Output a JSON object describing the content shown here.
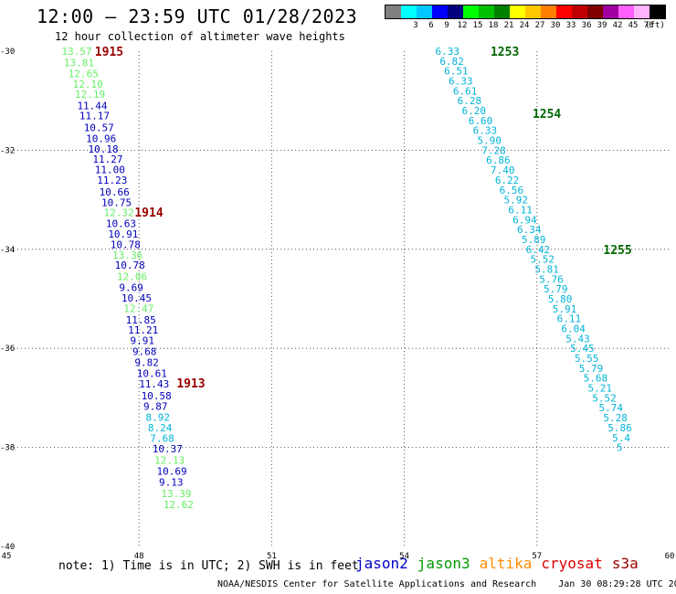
{
  "header": {
    "title": "12:00 — 23:59 UTC 01/28/2023",
    "subtitle": "12 hour collection of altimeter wave heights"
  },
  "legend": {
    "unit": "(ft)",
    "bins": [
      {
        "color": "#808080",
        "label": ""
      },
      {
        "color": "#00ffff",
        "label": "3"
      },
      {
        "color": "#00c8ff",
        "label": "6"
      },
      {
        "color": "#0000ff",
        "label": "9"
      },
      {
        "color": "#000080",
        "label": "12"
      },
      {
        "color": "#00ff00",
        "label": "15"
      },
      {
        "color": "#00c000",
        "label": "18"
      },
      {
        "color": "#008000",
        "label": "21"
      },
      {
        "color": "#ffff00",
        "label": "24"
      },
      {
        "color": "#ffc800",
        "label": "27"
      },
      {
        "color": "#ff8000",
        "label": "30"
      },
      {
        "color": "#ff0000",
        "label": "33"
      },
      {
        "color": "#c00000",
        "label": "36"
      },
      {
        "color": "#800000",
        "label": "39"
      },
      {
        "color": "#a000a0",
        "label": "42"
      },
      {
        "color": "#ff60ff",
        "label": "45"
      },
      {
        "color": "#ffb4ff",
        "label": "70"
      },
      {
        "color": "#000000",
        "label": ""
      }
    ]
  },
  "map": {
    "lon_range": [
      45,
      60
    ],
    "lat_range": [
      -40,
      -30
    ],
    "x_ticks": [
      "45",
      "48",
      "51",
      "54",
      "57",
      "60"
    ],
    "y_ticks": [
      "-30",
      "-32",
      "-34",
      "-36",
      "-38",
      "-40"
    ],
    "pass_colors": {
      "light_green": "#66ee66",
      "dark_blue": "#0000bb",
      "cyan": "#00b4d8",
      "maroon": "#990000",
      "dark_green": "#006600"
    },
    "passes": [
      {
        "id": "1915",
        "lat": -30.0,
        "lon": 47.0,
        "color": "maroon"
      },
      {
        "id": "1914",
        "lat": -33.25,
        "lon": 47.9,
        "color": "maroon"
      },
      {
        "id": "1913",
        "lat": -36.7,
        "lon": 48.85,
        "color": "maroon"
      },
      {
        "id": "1253",
        "lat": -30.0,
        "lon": 55.95,
        "color": "dark_green"
      },
      {
        "id": "1254",
        "lat": -31.25,
        "lon": 56.9,
        "color": "dark_green"
      },
      {
        "id": "1255",
        "lat": -34.0,
        "lon": 58.5,
        "color": "dark_green"
      }
    ],
    "track_points": [
      {
        "lat": -30.0,
        "lon": 46.25,
        "v": "13.57",
        "color": "light_green"
      },
      {
        "lat": -30.23,
        "lon": 46.3,
        "v": "13.81",
        "color": "light_green"
      },
      {
        "lat": -30.45,
        "lon": 46.4,
        "v": "12.65",
        "color": "light_green"
      },
      {
        "lat": -30.66,
        "lon": 46.5,
        "v": "12.10",
        "color": "light_green"
      },
      {
        "lat": -30.87,
        "lon": 46.55,
        "v": "12.19",
        "color": "light_green"
      },
      {
        "lat": -31.1,
        "lon": 46.6,
        "v": "11.44",
        "color": "dark_blue"
      },
      {
        "lat": -31.3,
        "lon": 46.65,
        "v": "11.17",
        "color": "dark_blue"
      },
      {
        "lat": -31.54,
        "lon": 46.75,
        "v": "10.57",
        "color": "dark_blue"
      },
      {
        "lat": -31.76,
        "lon": 46.8,
        "v": "10.96",
        "color": "dark_blue"
      },
      {
        "lat": -31.97,
        "lon": 46.85,
        "v": "10.18",
        "color": "dark_blue"
      },
      {
        "lat": -32.18,
        "lon": 46.95,
        "v": "11.27",
        "color": "dark_blue"
      },
      {
        "lat": -32.39,
        "lon": 47.0,
        "v": "11.00",
        "color": "dark_blue"
      },
      {
        "lat": -32.6,
        "lon": 47.05,
        "v": "11.23",
        "color": "dark_blue"
      },
      {
        "lat": -32.84,
        "lon": 47.1,
        "v": "10.66",
        "color": "dark_blue"
      },
      {
        "lat": -33.05,
        "lon": 47.15,
        "v": "10.75",
        "color": "dark_blue"
      },
      {
        "lat": -33.26,
        "lon": 47.2,
        "v": "12.32",
        "color": "light_green"
      },
      {
        "lat": -33.48,
        "lon": 47.25,
        "v": "10.63",
        "color": "dark_blue"
      },
      {
        "lat": -33.69,
        "lon": 47.3,
        "v": "10.91",
        "color": "dark_blue"
      },
      {
        "lat": -33.9,
        "lon": 47.35,
        "v": "10.78",
        "color": "dark_blue"
      },
      {
        "lat": -34.11,
        "lon": 47.4,
        "v": "13.36",
        "color": "light_green"
      },
      {
        "lat": -34.32,
        "lon": 47.45,
        "v": "10.78",
        "color": "dark_blue"
      },
      {
        "lat": -34.55,
        "lon": 47.5,
        "v": "12.06",
        "color": "light_green"
      },
      {
        "lat": -34.77,
        "lon": 47.55,
        "v": "9.69",
        "color": "dark_blue"
      },
      {
        "lat": -34.98,
        "lon": 47.6,
        "v": "10.45",
        "color": "dark_blue"
      },
      {
        "lat": -35.19,
        "lon": 47.65,
        "v": "12.47",
        "color": "light_green"
      },
      {
        "lat": -35.42,
        "lon": 47.7,
        "v": "11.85",
        "color": "dark_blue"
      },
      {
        "lat": -35.63,
        "lon": 47.75,
        "v": "11.21",
        "color": "dark_blue"
      },
      {
        "lat": -35.84,
        "lon": 47.8,
        "v": "9.91",
        "color": "dark_blue"
      },
      {
        "lat": -36.06,
        "lon": 47.85,
        "v": "9.68",
        "color": "dark_blue"
      },
      {
        "lat": -36.28,
        "lon": 47.9,
        "v": "9.82",
        "color": "dark_blue"
      },
      {
        "lat": -36.5,
        "lon": 47.95,
        "v": "10.61",
        "color": "dark_blue"
      },
      {
        "lat": -36.72,
        "lon": 48.0,
        "v": "11.43",
        "color": "dark_blue"
      },
      {
        "lat": -36.96,
        "lon": 48.05,
        "v": "10.58",
        "color": "dark_blue"
      },
      {
        "lat": -37.17,
        "lon": 48.1,
        "v": "9.87",
        "color": "dark_blue"
      },
      {
        "lat": -37.39,
        "lon": 48.15,
        "v": "8.92",
        "color": "cyan"
      },
      {
        "lat": -37.6,
        "lon": 48.2,
        "v": "8.24",
        "color": "cyan"
      },
      {
        "lat": -37.81,
        "lon": 48.25,
        "v": "7.68",
        "color": "cyan"
      },
      {
        "lat": -38.03,
        "lon": 48.3,
        "v": "10.37",
        "color": "dark_blue"
      },
      {
        "lat": -38.26,
        "lon": 48.35,
        "v": "12.13",
        "color": "light_green"
      },
      {
        "lat": -38.48,
        "lon": 48.4,
        "v": "10.69",
        "color": "dark_blue"
      },
      {
        "lat": -38.7,
        "lon": 48.45,
        "v": "9.13",
        "color": "dark_blue"
      },
      {
        "lat": -38.93,
        "lon": 48.5,
        "v": "13.39",
        "color": "light_green"
      },
      {
        "lat": -39.15,
        "lon": 48.55,
        "v": "12.62",
        "color": "light_green"
      },
      {
        "lat": -30.0,
        "lon": 54.7,
        "v": "6.33",
        "color": "cyan"
      },
      {
        "lat": -30.2,
        "lon": 54.8,
        "v": "6.82",
        "color": "cyan"
      },
      {
        "lat": -30.4,
        "lon": 54.9,
        "v": "6.51",
        "color": "cyan"
      },
      {
        "lat": -30.6,
        "lon": 55.0,
        "v": "6.33",
        "color": "cyan"
      },
      {
        "lat": -30.8,
        "lon": 55.1,
        "v": "6.61",
        "color": "cyan"
      },
      {
        "lat": -31.0,
        "lon": 55.2,
        "v": "6.28",
        "color": "cyan"
      },
      {
        "lat": -31.2,
        "lon": 55.3,
        "v": "6.20",
        "color": "cyan"
      },
      {
        "lat": -31.4,
        "lon": 55.45,
        "v": "6.60",
        "color": "cyan"
      },
      {
        "lat": -31.6,
        "lon": 55.55,
        "v": "6.33",
        "color": "cyan"
      },
      {
        "lat": -31.8,
        "lon": 55.65,
        "v": "5.90",
        "color": "cyan"
      },
      {
        "lat": -32.0,
        "lon": 55.75,
        "v": "7.28",
        "color": "cyan"
      },
      {
        "lat": -32.2,
        "lon": 55.85,
        "v": "6.86",
        "color": "cyan"
      },
      {
        "lat": -32.4,
        "lon": 55.95,
        "v": "7.40",
        "color": "cyan"
      },
      {
        "lat": -32.6,
        "lon": 56.05,
        "v": "6.22",
        "color": "cyan"
      },
      {
        "lat": -32.8,
        "lon": 56.15,
        "v": "6.56",
        "color": "cyan"
      },
      {
        "lat": -33.0,
        "lon": 56.25,
        "v": "5.92",
        "color": "cyan"
      },
      {
        "lat": -33.2,
        "lon": 56.35,
        "v": "6.11",
        "color": "cyan"
      },
      {
        "lat": -33.4,
        "lon": 56.45,
        "v": "6.94",
        "color": "cyan"
      },
      {
        "lat": -33.6,
        "lon": 56.55,
        "v": "6.34",
        "color": "cyan"
      },
      {
        "lat": -33.8,
        "lon": 56.65,
        "v": "5.89",
        "color": "cyan"
      },
      {
        "lat": -34.0,
        "lon": 56.75,
        "v": "6.42",
        "color": "cyan"
      },
      {
        "lat": -34.2,
        "lon": 56.85,
        "v": "5.52",
        "color": "cyan"
      },
      {
        "lat": -34.4,
        "lon": 56.95,
        "v": "5.81",
        "color": "cyan"
      },
      {
        "lat": -34.6,
        "lon": 57.05,
        "v": "5.76",
        "color": "cyan"
      },
      {
        "lat": -34.8,
        "lon": 57.15,
        "v": "5.79",
        "color": "cyan"
      },
      {
        "lat": -35.0,
        "lon": 57.25,
        "v": "5.80",
        "color": "cyan"
      },
      {
        "lat": -35.2,
        "lon": 57.35,
        "v": "5.91",
        "color": "cyan"
      },
      {
        "lat": -35.4,
        "lon": 57.45,
        "v": "6.11",
        "color": "cyan"
      },
      {
        "lat": -35.6,
        "lon": 57.55,
        "v": "6.04",
        "color": "cyan"
      },
      {
        "lat": -35.8,
        "lon": 57.65,
        "v": "5.43",
        "color": "cyan"
      },
      {
        "lat": -36.0,
        "lon": 57.75,
        "v": "5.45",
        "color": "cyan"
      },
      {
        "lat": -36.2,
        "lon": 57.85,
        "v": "5.55",
        "color": "cyan"
      },
      {
        "lat": -36.4,
        "lon": 57.95,
        "v": "5.79",
        "color": "cyan"
      },
      {
        "lat": -36.6,
        "lon": 58.05,
        "v": "5.68",
        "color": "cyan"
      },
      {
        "lat": -36.8,
        "lon": 58.15,
        "v": "5.21",
        "color": "cyan"
      },
      {
        "lat": -37.0,
        "lon": 58.25,
        "v": "5.52",
        "color": "cyan"
      },
      {
        "lat": -37.2,
        "lon": 58.4,
        "v": "5.74",
        "color": "cyan"
      },
      {
        "lat": -37.4,
        "lon": 58.5,
        "v": "5.28",
        "color": "cyan"
      },
      {
        "lat": -37.6,
        "lon": 58.6,
        "v": "5.86",
        "color": "cyan"
      },
      {
        "lat": -37.8,
        "lon": 58.7,
        "v": "5.4",
        "color": "cyan"
      },
      {
        "lat": -38.0,
        "lon": 58.8,
        "v": "5",
        "color": "cyan"
      }
    ]
  },
  "note": "note:  1) Time is in UTC; 2) SWH is in feet",
  "satellites": [
    {
      "name": "jason2",
      "color": "#0000cc"
    },
    {
      "name": "jason3",
      "color": "#009900"
    },
    {
      "name": "altika",
      "color": "#ff8c00"
    },
    {
      "name": "cryosat",
      "color": "#dd0000"
    },
    {
      "name": "s3a",
      "color": "#990000"
    }
  ],
  "footer": {
    "credit": "NOAA/NESDIS Center for Satellite Applications and Research",
    "timestamp": "Jan 30 08:29:28 UTC 2023"
  }
}
